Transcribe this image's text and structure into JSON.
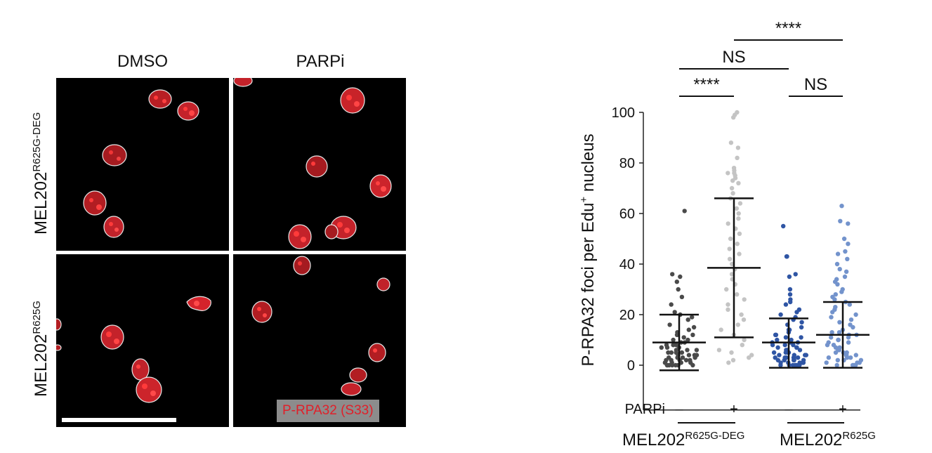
{
  "micrograph": {
    "columns": [
      "DMSO",
      "PARPi"
    ],
    "rows": [
      {
        "base": "MEL202",
        "sup": "R625G-DEG"
      },
      {
        "base": "MEL202",
        "sup": "R625G"
      }
    ],
    "stain_label": "P-RPA32 (S33)",
    "colors": {
      "nucleus": "#d4232b",
      "outline": "#e8e8e8",
      "background": "#000000"
    }
  },
  "chart_data": {
    "type": "scatter",
    "ylabel": "P-RPA32 foci per Edu",
    "ylabel_sup": "+",
    "ylabel_suffix": " nucleus",
    "ylim": [
      -8,
      100
    ],
    "yticks": [
      0,
      20,
      40,
      60,
      80,
      100
    ],
    "x_factor_label": "PARPi",
    "categories": [
      "–",
      "+",
      "–",
      "+"
    ],
    "groups": [
      {
        "base": "MEL202",
        "sup": "R625G-DEG",
        "span": [
          0,
          1
        ]
      },
      {
        "base": "MEL202",
        "sup": "R625G",
        "span": [
          2,
          3
        ]
      }
    ],
    "series": [
      {
        "color": "#4a4a4a",
        "mean": 9,
        "sd_low": -2,
        "sd_high": 20,
        "n": 90,
        "max": 61,
        "points": [
          61,
          36,
          35,
          33,
          30,
          27,
          24,
          21,
          20,
          19,
          18,
          16,
          15,
          14,
          13,
          12,
          12,
          11,
          10,
          10,
          9,
          9,
          8,
          8,
          8,
          7,
          7,
          7,
          6,
          6,
          6,
          5,
          5,
          5,
          5,
          4,
          4,
          4,
          4,
          3,
          3,
          3,
          3,
          2,
          2,
          2,
          2,
          2,
          1,
          1,
          1,
          1,
          1,
          0,
          0,
          0,
          0,
          0,
          0,
          0
        ]
      },
      {
        "color": "#c4c4c4",
        "mean": 38.5,
        "sd_low": 11,
        "sd_high": 66,
        "n": 90,
        "max": 100,
        "points": [
          100,
          99,
          98,
          88,
          86,
          82,
          78,
          77,
          76,
          76,
          75,
          74,
          73,
          72,
          70,
          68,
          66,
          64,
          62,
          60,
          58,
          56,
          54,
          52,
          50,
          48,
          46,
          44,
          42,
          40,
          38,
          36,
          34,
          32,
          30,
          28,
          26,
          24,
          22,
          20,
          18,
          16,
          14,
          12,
          10,
          8,
          6,
          5,
          4,
          3,
          2,
          1
        ]
      },
      {
        "color": "#2f55a4",
        "mean": 9,
        "sd_low": -1,
        "sd_high": 18.5,
        "n": 150,
        "max": 55,
        "points": [
          55,
          43,
          43,
          36,
          35,
          30,
          28,
          26,
          25,
          24,
          22,
          21,
          20,
          19,
          18,
          17,
          16,
          15,
          14,
          14,
          13,
          12,
          12,
          11,
          11,
          10,
          10,
          9,
          9,
          9,
          8,
          8,
          8,
          7,
          7,
          7,
          6,
          6,
          6,
          6,
          5,
          5,
          5,
          5,
          4,
          4,
          4,
          4,
          3,
          3,
          3,
          3,
          3,
          2,
          2,
          2,
          2,
          2,
          1,
          1,
          1,
          1,
          1,
          1,
          0,
          0,
          0,
          0,
          0,
          0,
          0,
          0
        ]
      },
      {
        "color": "#7393cc",
        "mean": 12,
        "sd_low": -1,
        "sd_high": 25,
        "n": 150,
        "max": 63,
        "points": [
          63,
          57,
          56,
          50,
          48,
          45,
          44,
          42,
          40,
          38,
          37,
          35,
          34,
          33,
          32,
          30,
          29,
          28,
          27,
          26,
          25,
          24,
          23,
          22,
          21,
          20,
          19,
          18,
          17,
          16,
          15,
          14,
          13,
          13,
          12,
          12,
          11,
          11,
          10,
          10,
          9,
          9,
          8,
          8,
          7,
          7,
          6,
          6,
          5,
          5,
          5,
          4,
          4,
          4,
          3,
          3,
          3,
          2,
          2,
          2,
          1,
          1,
          1,
          0,
          0,
          0,
          0,
          0
        ]
      }
    ],
    "significance": [
      {
        "label": "****",
        "from": 1,
        "to": 3
      },
      {
        "label": "NS",
        "from": 0,
        "to": 2
      },
      {
        "label": "****",
        "from": 0,
        "to": 1
      },
      {
        "label": "NS",
        "from": 2,
        "to": 3
      }
    ]
  }
}
